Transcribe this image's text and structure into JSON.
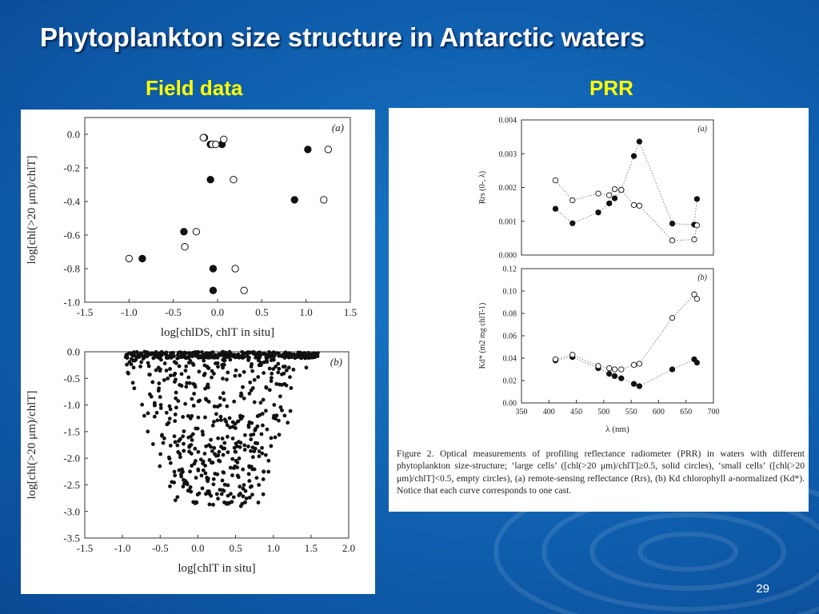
{
  "slide": {
    "title": "Phytoplankton size structure in Antarctic waters",
    "left_heading": "Field data",
    "right_heading": "PRR",
    "page_number": "29",
    "caption": "Figure 2.   Optical measurements of profiling reflectance radiometer (PRR) in waters with different phytoplankton size-structure; ‘large cells’ ([chl(>20 μm)/chlT]≥0.5, solid circles), ‘small cells’ ([chl(>20 μm)/chlT]<0.5, empty circles), (a) remote-sensing reflectance (Rrs), (b) Kd chlorophyll a-normalized (Kd*). Notice that each curve corresponds to one cast."
  },
  "colors": {
    "background": "#0f5fae",
    "title": "#ffffff",
    "heading": "#ffff00",
    "panel": "#ffffff",
    "marker": "#111111"
  },
  "chart_data": [
    {
      "id": "field-a",
      "type": "scatter",
      "panel_label": "(a)",
      "xlabel": "log[chlDS, chlT in situ]",
      "ylabel": "log[chl(>20 μm)/chlT]",
      "xlim": [
        -1.5,
        1.5
      ],
      "ylim": [
        -1.0,
        0.1
      ],
      "xticks": [
        -1.5,
        -1.0,
        -0.5,
        0.0,
        0.5,
        1.0,
        1.5
      ],
      "yticks": [
        0.0,
        -0.2,
        -0.4,
        -0.6,
        -0.8,
        -1.0
      ],
      "series": [
        {
          "marker": "filled",
          "points": [
            [
              -0.85,
              -0.74
            ],
            [
              -0.38,
              -0.58
            ],
            [
              -0.08,
              -0.27
            ],
            [
              -0.08,
              -0.06
            ],
            [
              0.05,
              -0.06
            ],
            [
              0.87,
              -0.39
            ],
            [
              1.02,
              -0.09
            ],
            [
              -0.05,
              -0.8
            ],
            [
              -0.05,
              -0.93
            ],
            [
              -0.15,
              -0.02
            ]
          ]
        },
        {
          "marker": "empty",
          "points": [
            [
              -1.0,
              -0.74
            ],
            [
              -0.37,
              -0.67
            ],
            [
              -0.24,
              -0.58
            ],
            [
              -0.16,
              -0.02
            ],
            [
              -0.06,
              -0.06
            ],
            [
              -0.02,
              -0.06
            ],
            [
              0.07,
              -0.03
            ],
            [
              0.18,
              -0.27
            ],
            [
              0.2,
              -0.8
            ],
            [
              0.3,
              -0.93
            ],
            [
              1.2,
              -0.39
            ],
            [
              1.25,
              -0.09
            ]
          ]
        }
      ]
    },
    {
      "id": "field-b",
      "type": "scatter",
      "panel_label": "(b)",
      "xlabel": "log[chlT in situ]",
      "ylabel": "log[chl(>20 μm)/chlT]",
      "xlim": [
        -1.5,
        2.0
      ],
      "ylim": [
        -3.5,
        0.0
      ],
      "xticks": [
        -1.5,
        -1.0,
        -0.5,
        0.0,
        0.5,
        1.0,
        1.5,
        2.0
      ],
      "yticks": [
        0.0,
        -0.5,
        -1.0,
        -1.5,
        -2.0,
        -2.5,
        -3.0,
        -3.5
      ],
      "note": "Several hundred individual casts; the dense cloud is concentrated at x from -1.1 to 1.6 and y from 0 to -3.0, densest near the top and along x 0 to 0.5."
    },
    {
      "id": "prr-a",
      "type": "line",
      "panel_label": "(a)",
      "xlabel": "",
      "ylabel": "Rrs (0-, λ)",
      "xlim": [
        350,
        700
      ],
      "ylim": [
        0.0,
        0.004
      ],
      "yticks": [
        0.0,
        0.001,
        0.002,
        0.003,
        0.004
      ],
      "series": [
        {
          "marker": "filled",
          "x": [
            412,
            443,
            490,
            510,
            520,
            532,
            555,
            565,
            625,
            665,
            670
          ],
          "y": [
            0.00137,
            0.00094,
            0.00126,
            0.00153,
            0.00168,
            0.00193,
            0.00293,
            0.00336,
            0.00093,
            0.0009,
            0.00166
          ]
        },
        {
          "marker": "empty",
          "x": [
            412,
            443,
            490,
            510,
            520,
            532,
            555,
            565,
            625,
            665,
            670
          ],
          "y": [
            0.00221,
            0.00162,
            0.00182,
            0.00177,
            0.00195,
            0.00193,
            0.00148,
            0.00146,
            0.00043,
            0.00046,
            0.00088
          ]
        }
      ]
    },
    {
      "id": "prr-b",
      "type": "line",
      "panel_label": "(b)",
      "xlabel": "λ (nm)",
      "ylabel": "Kd* (m2 mg chlT-1)",
      "xlim": [
        350,
        700
      ],
      "ylim": [
        0.0,
        0.12
      ],
      "xticks": [
        350,
        400,
        450,
        500,
        550,
        600,
        650,
        700
      ],
      "yticks": [
        0.0,
        0.02,
        0.04,
        0.06,
        0.08,
        0.1,
        0.12
      ],
      "series": [
        {
          "marker": "filled",
          "x": [
            412,
            443,
            490,
            510,
            520,
            532,
            555,
            565,
            625,
            665,
            670
          ],
          "y": [
            0.038,
            0.041,
            0.031,
            0.026,
            0.024,
            0.022,
            0.017,
            0.015,
            0.03,
            0.039,
            0.036
          ]
        },
        {
          "marker": "empty",
          "x": [
            412,
            443,
            490,
            510,
            520,
            532,
            555,
            565,
            625,
            665,
            670
          ],
          "y": [
            0.039,
            0.043,
            0.033,
            0.031,
            0.03,
            0.03,
            0.034,
            0.035,
            0.076,
            0.097,
            0.093
          ]
        }
      ]
    }
  ]
}
